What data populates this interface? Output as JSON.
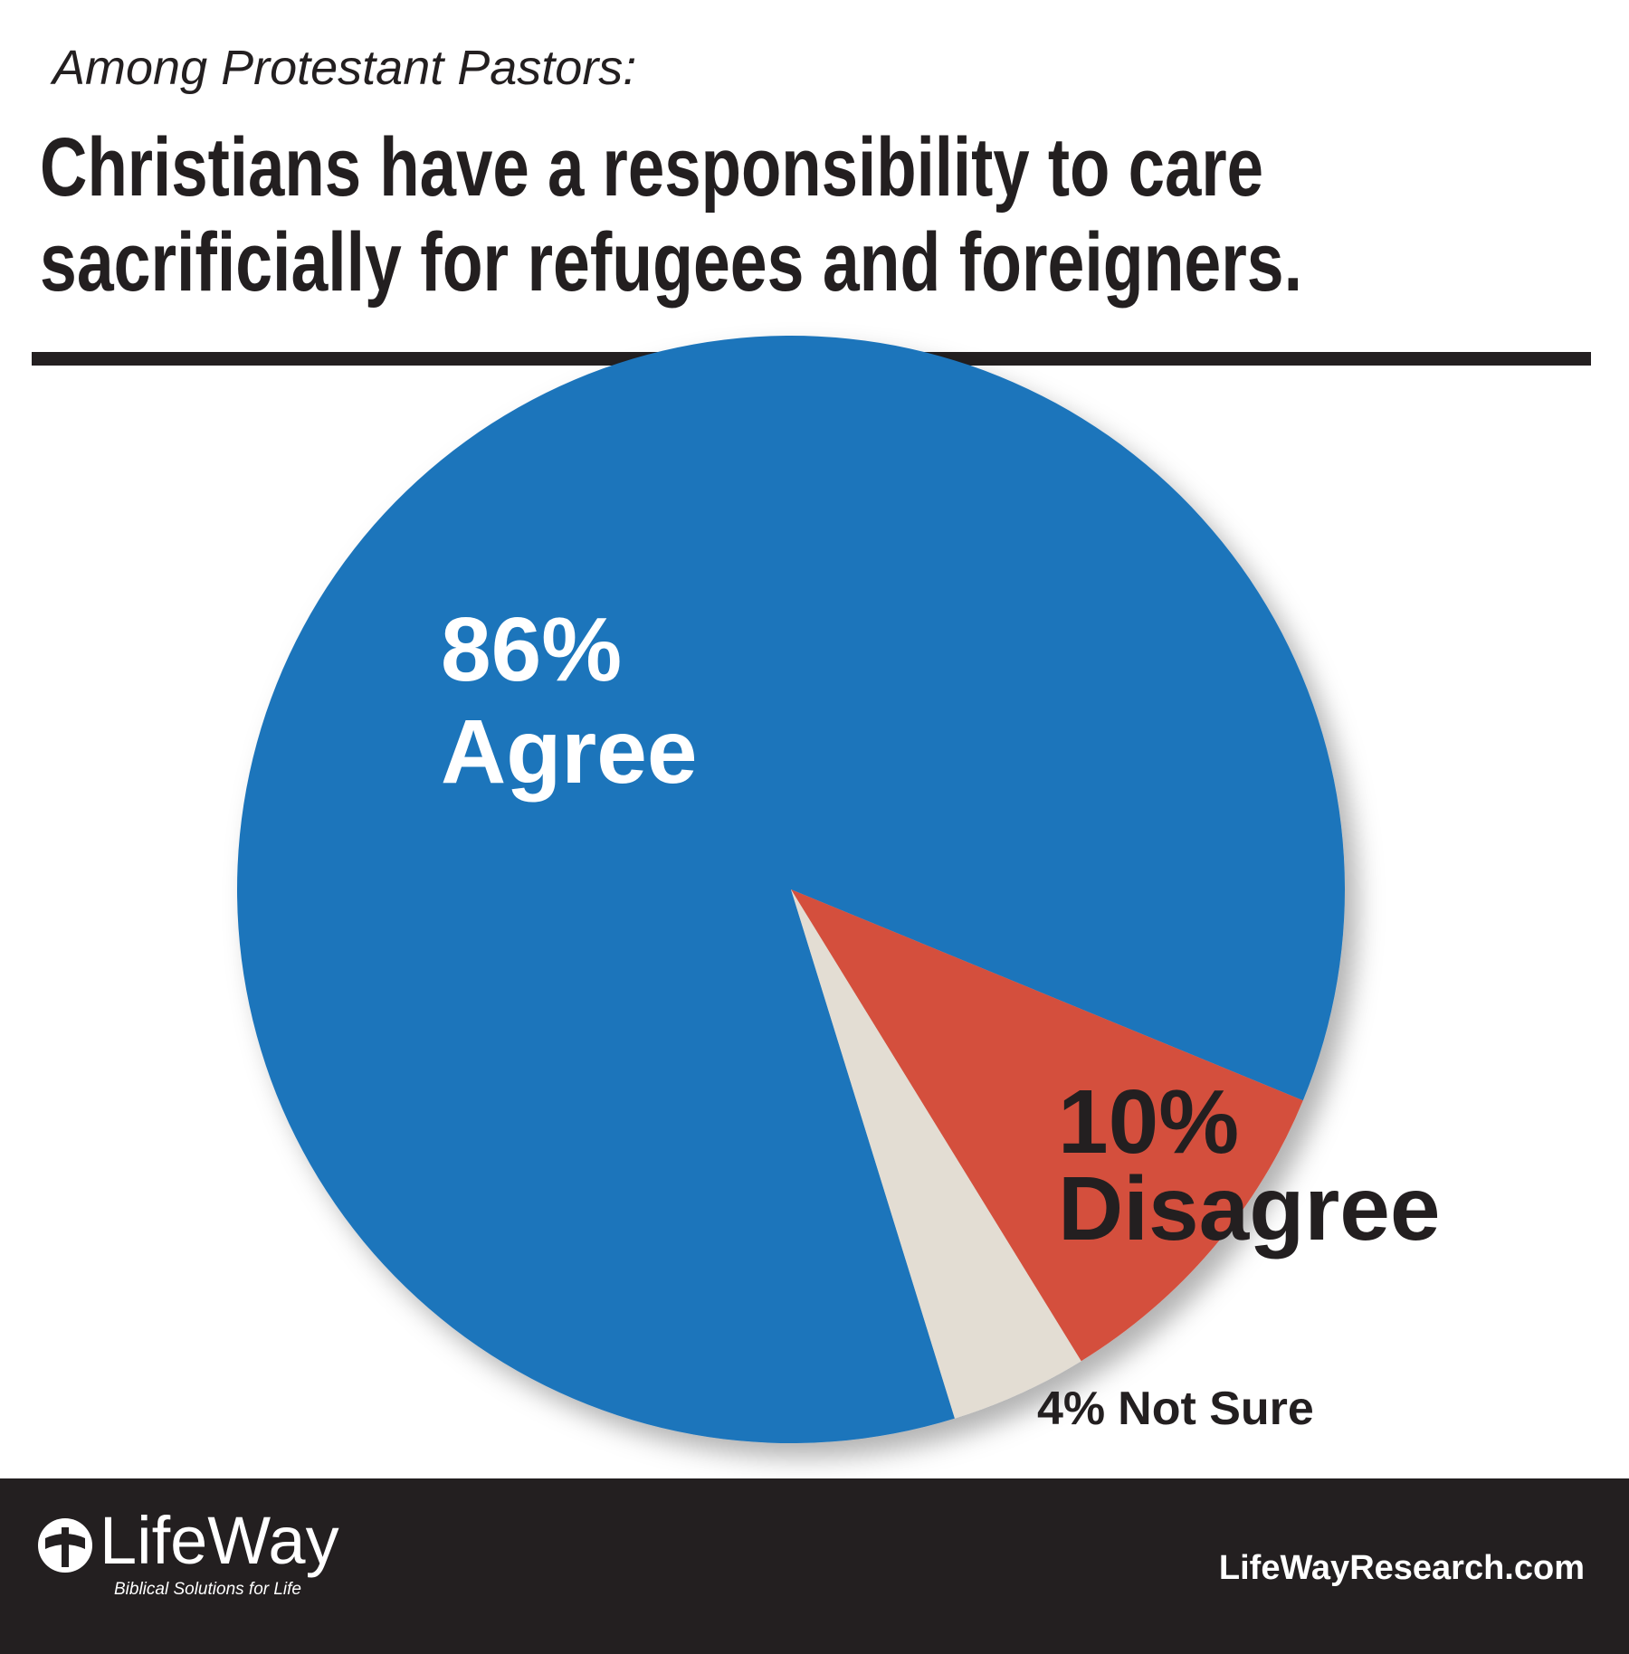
{
  "chart_data": {
    "type": "pie",
    "subtitle": "Among Protestant Pastors:",
    "title": [
      "Christians have a responsibility to care",
      "sacrificially for refugees and foreigners."
    ],
    "categories": [
      "Agree",
      "Disagree",
      "Not Sure"
    ],
    "values": [
      86,
      10,
      4
    ],
    "value_labels": [
      "86%",
      "10%",
      "4%"
    ],
    "colors": [
      "#1d74bb",
      "#d44f3c",
      "#e3ddd3"
    ]
  },
  "footer": {
    "logo": "LifeWay",
    "tagline": "Biblical Solutions for Life",
    "url": "LifeWayResearch.com"
  }
}
